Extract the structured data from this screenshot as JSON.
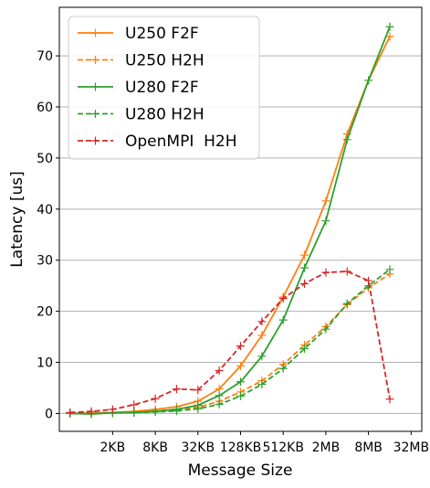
{
  "chart_data": {
    "type": "line",
    "title": "",
    "xlabel": "Message Size",
    "ylabel": "Latency [us]",
    "x_tick_labels": [
      "2KB",
      "8KB",
      "32KB",
      "128KB",
      "512KB",
      "2MB",
      "8MB",
      "32MB"
    ],
    "x_tick_positions": [
      1,
      3,
      5,
      7,
      9,
      11,
      13,
      15
    ],
    "x": [
      -1,
      0,
      1,
      2,
      3,
      4,
      5,
      6,
      7,
      8,
      9,
      10,
      11,
      12,
      13,
      14,
      15
    ],
    "xlim": [
      -1.5,
      15.5
    ],
    "ylim": [
      -3.5,
      79.5
    ],
    "y_ticks": [
      0,
      10,
      20,
      30,
      40,
      50,
      60,
      70
    ],
    "grid": "horizontal",
    "legend_position": "top-left",
    "series": [
      {
        "name": "U250 F2F",
        "color": "#ff7f0e",
        "linestyle": "solid",
        "values": [
          0.0,
          0.1,
          0.2,
          0.4,
          0.8,
          1.3,
          2.4,
          4.8,
          9.3,
          15.3,
          22.8,
          31.0,
          41.6,
          54.7,
          65.2,
          73.8,
          null
        ]
      },
      {
        "name": "U250 H2H",
        "color": "#ff7f0e",
        "linestyle": "dashed",
        "values": [
          0.0,
          0.1,
          0.2,
          0.3,
          0.5,
          0.8,
          1.2,
          2.4,
          4.2,
          6.4,
          9.6,
          13.4,
          17.0,
          21.3,
          24.6,
          27.3,
          null
        ]
      },
      {
        "name": "U280 F2F",
        "color": "#2ca02c",
        "linestyle": "solid",
        "values": [
          0.0,
          -0.1,
          0.1,
          0.2,
          0.4,
          0.8,
          1.6,
          3.5,
          6.2,
          11.2,
          18.3,
          28.5,
          37.7,
          53.6,
          65.2,
          75.7,
          null
        ]
      },
      {
        "name": "U280 H2H",
        "color": "#2ca02c",
        "linestyle": "dashed",
        "values": [
          0.0,
          0.0,
          0.1,
          0.2,
          0.3,
          0.5,
          0.9,
          1.8,
          3.4,
          5.7,
          8.8,
          12.7,
          16.5,
          21.5,
          25.0,
          28.2,
          null
        ]
      },
      {
        "name": "OpenMPI  H2H",
        "color": "#d62728",
        "linestyle": "dashed",
        "values": [
          0.2,
          0.4,
          0.8,
          1.7,
          2.9,
          4.8,
          4.6,
          8.4,
          13.2,
          18.0,
          22.5,
          25.4,
          27.6,
          27.8,
          26.0,
          2.8,
          null
        ]
      }
    ]
  }
}
